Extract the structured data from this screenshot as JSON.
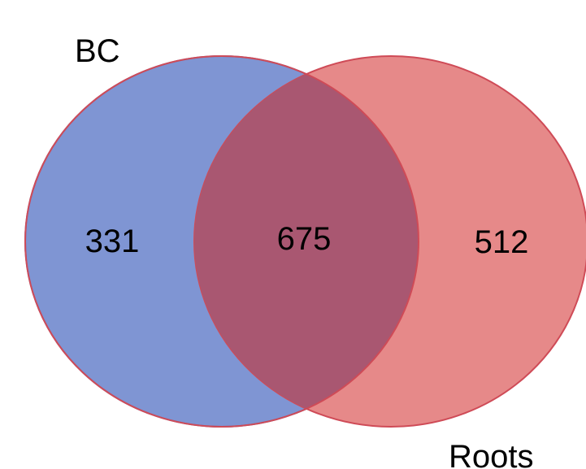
{
  "sets": [
    {
      "label": "BC",
      "fill": "#7f95d3",
      "stroke": "#5a6fc2"
    },
    {
      "label": "Roots",
      "fill": "#e68989",
      "stroke": "#cf4b57"
    }
  ],
  "intersection_fill": "#a95771",
  "counts": {
    "bc_only": "331",
    "both": "675",
    "roots_only": "512"
  }
}
